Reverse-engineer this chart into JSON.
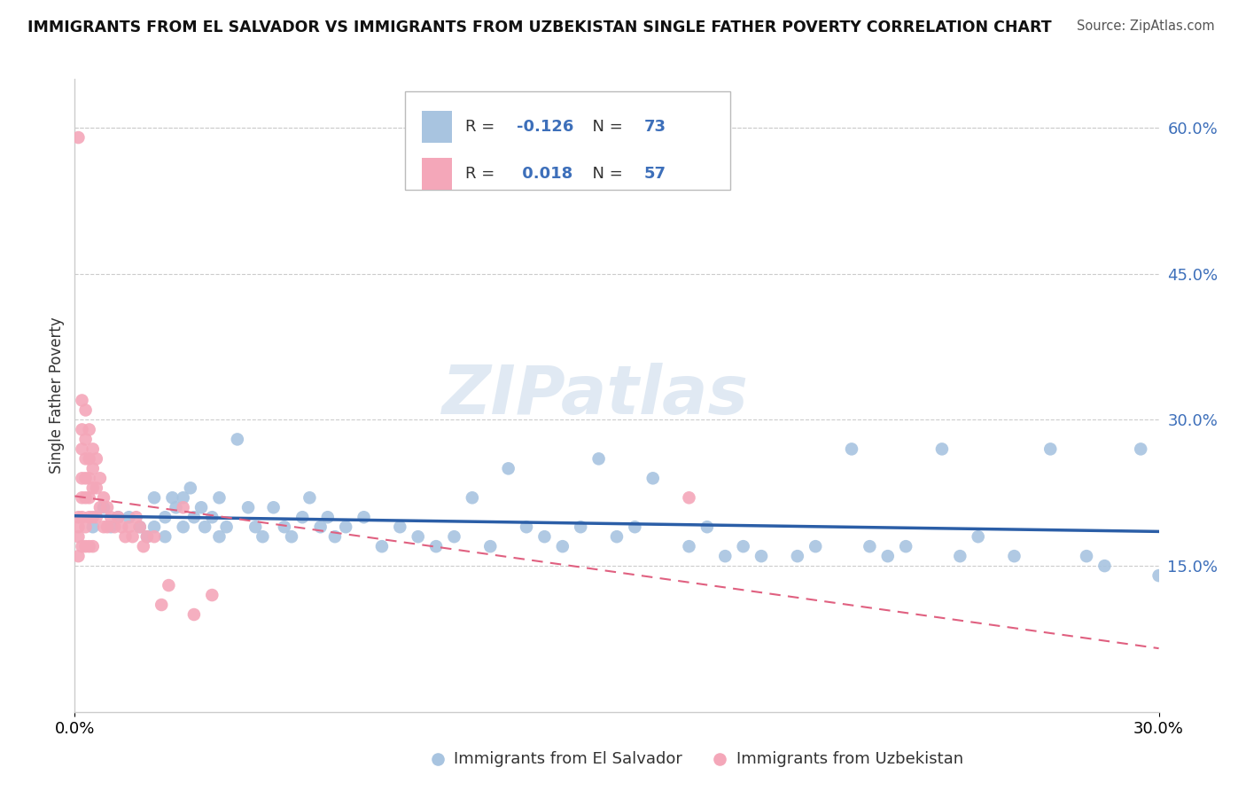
{
  "title": "IMMIGRANTS FROM EL SALVADOR VS IMMIGRANTS FROM UZBEKISTAN SINGLE FATHER POVERTY CORRELATION CHART",
  "source": "Source: ZipAtlas.com",
  "ylabel": "Single Father Poverty",
  "xlim": [
    0.0,
    0.3
  ],
  "ylim": [
    0.0,
    0.65
  ],
  "right_yticks": [
    0.15,
    0.3,
    0.45,
    0.6
  ],
  "right_yticklabels": [
    "15.0%",
    "30.0%",
    "45.0%",
    "60.0%"
  ],
  "legend_label_1": "Immigrants from El Salvador",
  "legend_label_2": "Immigrants from Uzbekistan",
  "R1": -0.126,
  "N1": 73,
  "R2": 0.018,
  "N2": 57,
  "color_el_salvador": "#a8c4e0",
  "color_uzbekistan": "#f4a7b9",
  "color_el_salvador_line": "#2b5ea7",
  "color_uzbekistan_line": "#e06080",
  "watermark": "ZIPatlas",
  "el_salvador_x": [
    0.005,
    0.008,
    0.01,
    0.012,
    0.015,
    0.018,
    0.02,
    0.022,
    0.022,
    0.025,
    0.025,
    0.027,
    0.028,
    0.03,
    0.03,
    0.032,
    0.033,
    0.035,
    0.036,
    0.038,
    0.04,
    0.04,
    0.042,
    0.045,
    0.048,
    0.05,
    0.052,
    0.055,
    0.058,
    0.06,
    0.063,
    0.065,
    0.068,
    0.07,
    0.072,
    0.075,
    0.08,
    0.085,
    0.09,
    0.095,
    0.1,
    0.105,
    0.11,
    0.115,
    0.12,
    0.125,
    0.13,
    0.135,
    0.14,
    0.145,
    0.15,
    0.155,
    0.16,
    0.17,
    0.175,
    0.18,
    0.185,
    0.19,
    0.2,
    0.205,
    0.215,
    0.22,
    0.225,
    0.23,
    0.24,
    0.245,
    0.25,
    0.26,
    0.27,
    0.28,
    0.285,
    0.295,
    0.3
  ],
  "el_salvador_y": [
    0.19,
    0.21,
    0.19,
    0.2,
    0.2,
    0.19,
    0.18,
    0.22,
    0.19,
    0.2,
    0.18,
    0.22,
    0.21,
    0.22,
    0.19,
    0.23,
    0.2,
    0.21,
    0.19,
    0.2,
    0.18,
    0.22,
    0.19,
    0.28,
    0.21,
    0.19,
    0.18,
    0.21,
    0.19,
    0.18,
    0.2,
    0.22,
    0.19,
    0.2,
    0.18,
    0.19,
    0.2,
    0.17,
    0.19,
    0.18,
    0.17,
    0.18,
    0.22,
    0.17,
    0.25,
    0.19,
    0.18,
    0.17,
    0.19,
    0.26,
    0.18,
    0.19,
    0.24,
    0.17,
    0.19,
    0.16,
    0.17,
    0.16,
    0.16,
    0.17,
    0.27,
    0.17,
    0.16,
    0.17,
    0.27,
    0.16,
    0.18,
    0.16,
    0.27,
    0.16,
    0.15,
    0.27,
    0.14
  ],
  "uzbekistan_x": [
    0.001,
    0.001,
    0.001,
    0.001,
    0.001,
    0.002,
    0.002,
    0.002,
    0.002,
    0.002,
    0.002,
    0.002,
    0.003,
    0.003,
    0.003,
    0.003,
    0.003,
    0.003,
    0.003,
    0.004,
    0.004,
    0.004,
    0.004,
    0.004,
    0.004,
    0.005,
    0.005,
    0.005,
    0.005,
    0.005,
    0.006,
    0.006,
    0.006,
    0.007,
    0.007,
    0.008,
    0.008,
    0.009,
    0.009,
    0.01,
    0.011,
    0.012,
    0.013,
    0.014,
    0.015,
    0.016,
    0.017,
    0.018,
    0.019,
    0.02,
    0.022,
    0.024,
    0.026,
    0.03,
    0.033,
    0.038,
    0.17
  ],
  "uzbekistan_y": [
    0.59,
    0.2,
    0.19,
    0.18,
    0.16,
    0.32,
    0.29,
    0.27,
    0.24,
    0.22,
    0.2,
    0.17,
    0.31,
    0.28,
    0.26,
    0.24,
    0.22,
    0.19,
    0.17,
    0.29,
    0.26,
    0.24,
    0.22,
    0.2,
    0.17,
    0.27,
    0.25,
    0.23,
    0.2,
    0.17,
    0.26,
    0.23,
    0.2,
    0.24,
    0.21,
    0.22,
    0.19,
    0.21,
    0.19,
    0.2,
    0.19,
    0.2,
    0.19,
    0.18,
    0.19,
    0.18,
    0.2,
    0.19,
    0.17,
    0.18,
    0.18,
    0.11,
    0.13,
    0.21,
    0.1,
    0.12,
    0.22
  ]
}
